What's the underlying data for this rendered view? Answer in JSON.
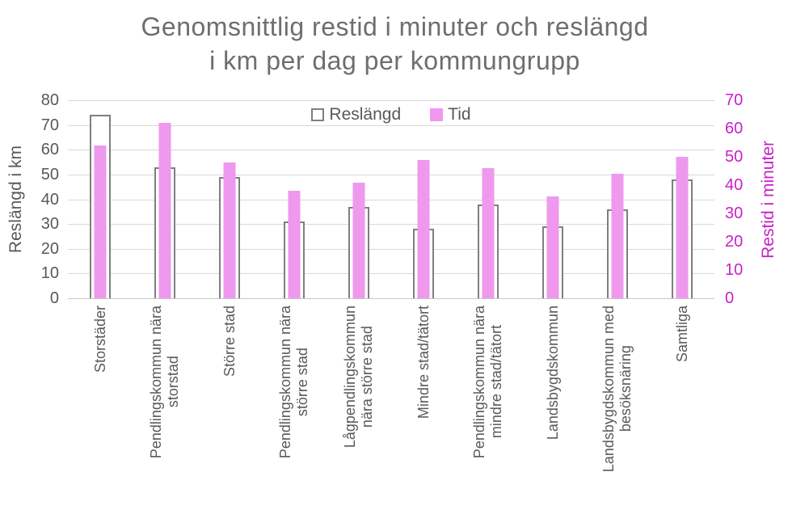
{
  "title": {
    "line1": "Genomsnittlig restid i minuter och reslängd",
    "line2": "i km per dag per kommungrupp"
  },
  "legend": {
    "items": [
      {
        "label": "Reslängd",
        "swatch": "outline"
      },
      {
        "label": "Tid",
        "swatch": "fill"
      }
    ]
  },
  "left_axis": {
    "title": "Reslängd i km",
    "ticks": [
      80,
      70,
      60,
      50,
      40,
      30,
      20,
      10,
      0
    ],
    "max": 80
  },
  "right_axis": {
    "title": "Restid i minuter",
    "ticks": [
      70,
      60,
      50,
      40,
      30,
      20,
      10,
      0
    ],
    "max": 70
  },
  "colors": {
    "tid_fill": "#EE99EE",
    "magenta": "#C920C9",
    "bar_outline": "#7F7F7F",
    "text_gray": "#595959",
    "title_gray": "#6E6E6E",
    "gridline": "#D9D9D9",
    "baseline": "#C6C6C6",
    "background": "#FFFFFF"
  },
  "chart_data": {
    "type": "bar",
    "title": "Genomsnittlig restid i minuter och reslängd i km per dag per kommungrupp",
    "categories": [
      "Storstäder",
      "Pendlingskommun nära storstad",
      "Större stad",
      "Pendlingskommun nära större stad",
      "Lågpendlingskommun nära större stad",
      "Mindre stad/tätort",
      "Pendlingskommun nära mindre stad/tätort",
      "Landsbygdskommun",
      "Landsbygdskommun med besöksnäring",
      "Samtliga"
    ],
    "category_label_lines": [
      [
        "Storstäder"
      ],
      [
        "Pendlingskommun nära",
        "storstad"
      ],
      [
        "Större stad"
      ],
      [
        "Pendlingskommun nära",
        "större stad"
      ],
      [
        "Lågpendlingskommun",
        "nära större stad"
      ],
      [
        "Mindre stad/tätort"
      ],
      [
        "Pendlingskommun nära",
        "mindre stad/tätort"
      ],
      [
        "Landsbygdskommun"
      ],
      [
        "Landsbygdskommun med",
        "besöksnäring"
      ],
      [
        "Samtliga"
      ]
    ],
    "series": [
      {
        "name": "Reslängd",
        "axis": "left",
        "unit": "km",
        "values": [
          74,
          53,
          49,
          31,
          37,
          28,
          38,
          29,
          36,
          48
        ],
        "style": "white-bar-gray-outline"
      },
      {
        "name": "Tid",
        "axis": "right",
        "unit": "minuter",
        "values": [
          54,
          62,
          48,
          38,
          41,
          49,
          46,
          36,
          44,
          50
        ],
        "color": "#EE99EE"
      }
    ],
    "left_ylim": [
      0,
      80
    ],
    "right_ylim": [
      0,
      70
    ],
    "grid": true,
    "legend_position": "top-center"
  }
}
